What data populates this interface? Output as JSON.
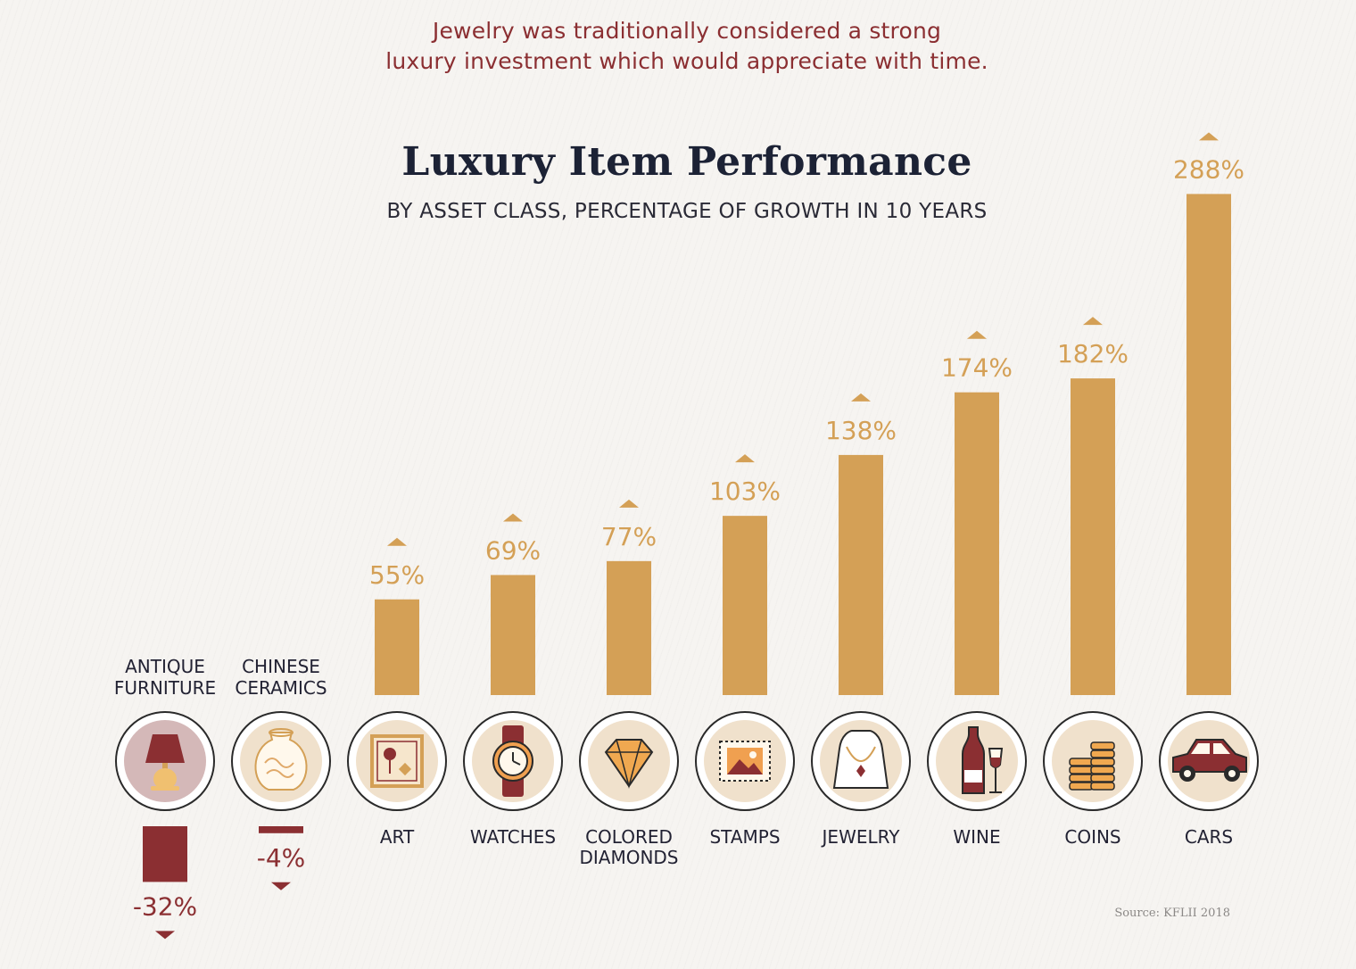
{
  "headline": "Jewelry was traditionally considered a strong luxury investment which would appreciate with time.",
  "headline_lines": [
    "Jewelry was traditionally considered a strong",
    "luxury investment which would appreciate with time."
  ],
  "source": "Source: KFLII 2018",
  "colors": {
    "positive": "#d4a056",
    "negative": "#8b2f32",
    "headline": "#8b2f32",
    "title": "#1c2235",
    "icon_ring": "#2a2a2a",
    "icon_fill_light": "#f0e1cc",
    "icon_fill_rose": "#d4b8b8"
  },
  "chart_data": {
    "type": "bar",
    "title": "Luxury Item Performance",
    "subtitle": "BY ASSET CLASS, PERCENTAGE OF GROWTH IN 10 YEARS",
    "categories": [
      "ANTIQUE FURNITURE",
      "CHINESE CERAMICS",
      "ART",
      "WATCHES",
      "COLORED DIAMONDS",
      "STAMPS",
      "JEWELRY",
      "WINE",
      "COINS",
      "CARS"
    ],
    "category_lines": [
      [
        "ANTIQUE",
        "FURNITURE"
      ],
      [
        "CHINESE",
        "CERAMICS"
      ],
      [
        "ART"
      ],
      [
        "WATCHES"
      ],
      [
        "COLORED",
        "DIAMONDS"
      ],
      [
        "STAMPS"
      ],
      [
        "JEWELRY"
      ],
      [
        "WINE"
      ],
      [
        "COINS"
      ],
      [
        "CARS"
      ]
    ],
    "values": [
      -32,
      -4,
      55,
      69,
      77,
      103,
      138,
      174,
      182,
      288
    ],
    "value_labels": [
      "-32%",
      "-4%",
      "55%",
      "69%",
      "77%",
      "103%",
      "138%",
      "174%",
      "182%",
      "288%"
    ],
    "icons": [
      "lamp-icon",
      "vase-icon",
      "painting-icon",
      "watch-icon",
      "diamond-icon",
      "stamp-icon",
      "necklace-icon",
      "wine-icon",
      "coins-icon",
      "car-icon"
    ],
    "unit": "%",
    "grid": false,
    "legend": "none"
  }
}
